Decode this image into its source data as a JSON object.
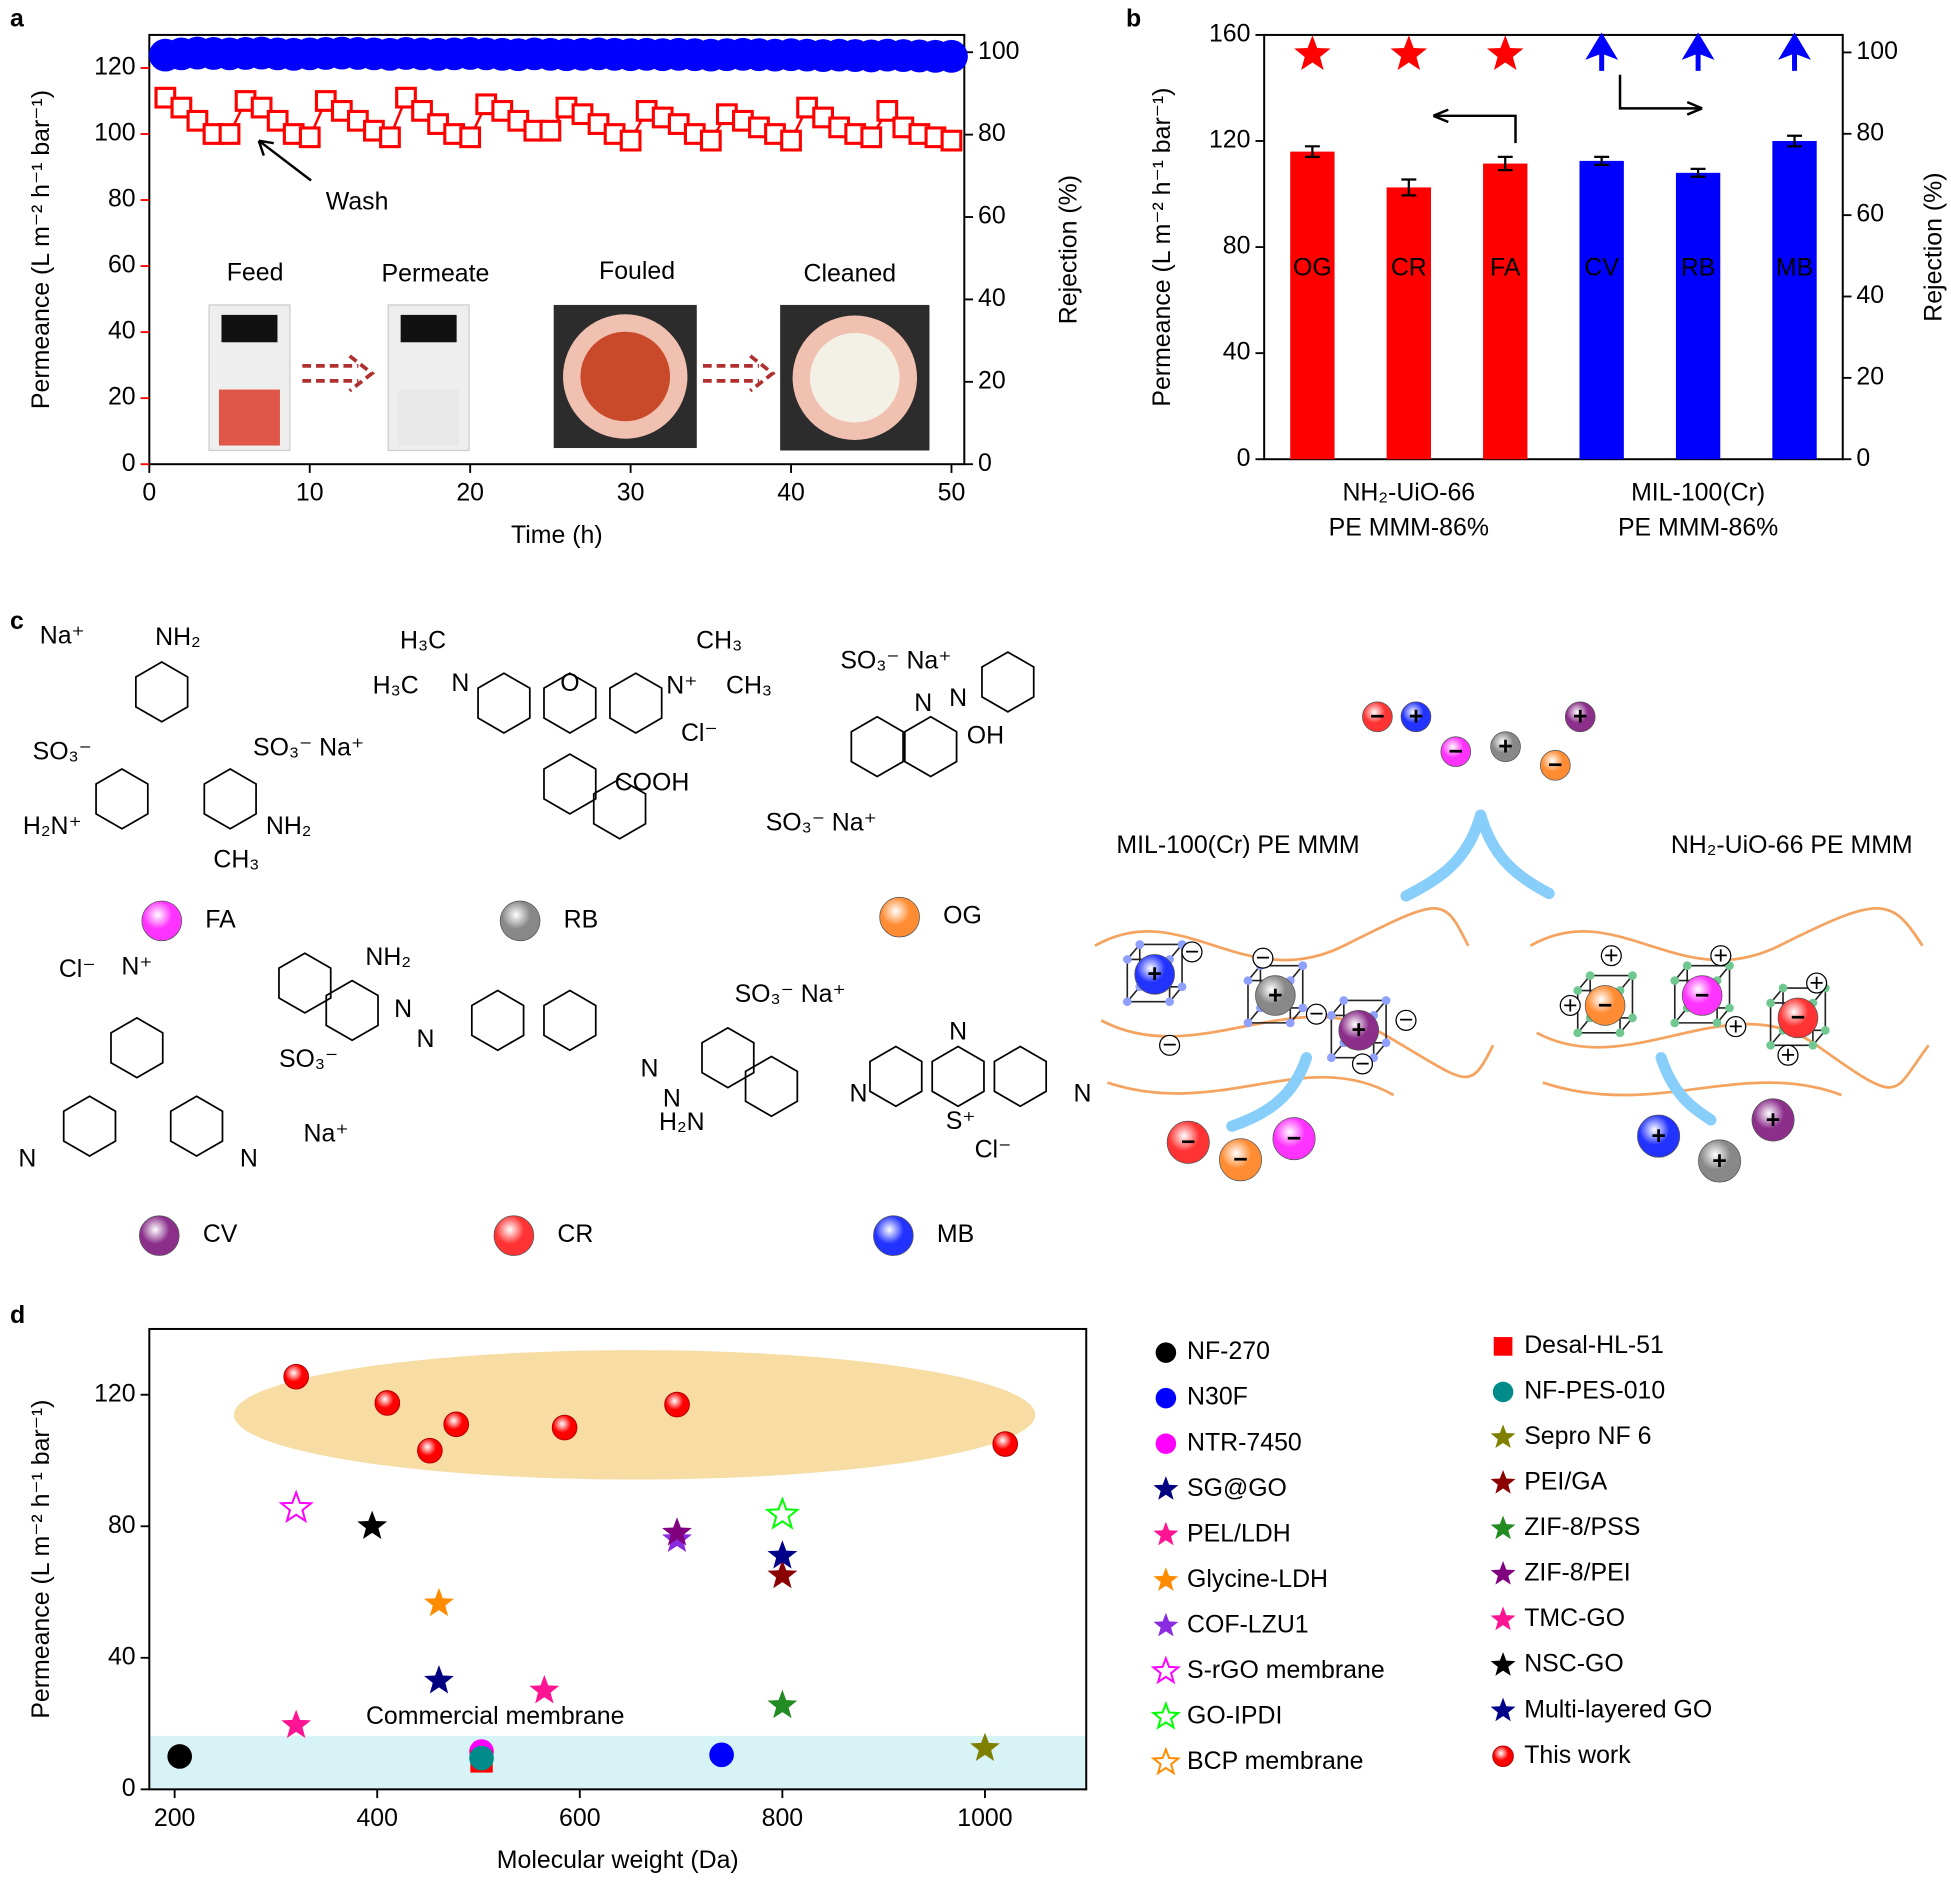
{
  "panel_labels": [
    "a",
    "b",
    "c",
    "d"
  ],
  "chart_data": [
    {
      "type": "line",
      "x": [
        1,
        2,
        3,
        4,
        5,
        6,
        7,
        8,
        9,
        10,
        11,
        12,
        13,
        14,
        15,
        16,
        17,
        18,
        19,
        20,
        21,
        22,
        23,
        24,
        25,
        26,
        27,
        28,
        29,
        30,
        31,
        32,
        33,
        34,
        35,
        36,
        37,
        38,
        39,
        40,
        41,
        42,
        43,
        44,
        45,
        46,
        47,
        48,
        49,
        50
      ],
      "xlim": [
        0,
        50.8
      ],
      "xticks": [
        0,
        10,
        20,
        30,
        40,
        50
      ],
      "ylim": [
        0,
        130
      ],
      "yticks": [
        0,
        20,
        40,
        60,
        80,
        100,
        120
      ],
      "y2lim": [
        0,
        104.2
      ],
      "y2ticks": [
        0,
        20,
        40,
        60,
        80,
        100
      ],
      "xlabel": "Time (h)",
      "ylabel": "Permeance (L m⁻² h⁻¹ bar⁻¹)",
      "y2label": "Rejection (%)",
      "y_axis_color": "#ff0000",
      "series": [
        {
          "color": "#0000ff",
          "marker": "circle",
          "axis": "y2",
          "values": [
            99.3,
            99.6,
            99.8,
            99.7,
            99.6,
            99.7,
            99.8,
            99.6,
            99.5,
            99.6,
            99.7,
            99.8,
            99.7,
            99.6,
            99.5,
            99.7,
            99.6,
            99.5,
            99.6,
            99.7,
            99.6,
            99.5,
            99.4,
            99.6,
            99.5,
            99.4,
            99.5,
            99.6,
            99.5,
            99.4,
            99.5,
            99.4,
            99.5,
            99.4,
            99.3,
            99.4,
            99.5,
            99.4,
            99.3,
            99.4,
            99.3,
            99.2,
            99.3,
            99.2,
            99.1,
            99.3,
            99.2,
            99.1,
            99.0,
            99.0
          ]
        },
        {
          "color": "#ff0000",
          "marker": "open-square",
          "line": true,
          "values": [
            111,
            108,
            104,
            100,
            100,
            110,
            108,
            104,
            100,
            99,
            110,
            107,
            104,
            101,
            99,
            111,
            107,
            103,
            100,
            99,
            109,
            107,
            104,
            101,
            101,
            108,
            106,
            103,
            100,
            98,
            107,
            105,
            103,
            100,
            98,
            106,
            104,
            102,
            100,
            98,
            108,
            105,
            102,
            100,
            99,
            107,
            102,
            100,
            99,
            98
          ]
        }
      ],
      "annotations": [
        "Wash",
        "Feed",
        "Permeate",
        "Fouled",
        "Cleaned"
      ]
    },
    {
      "type": "bar",
      "categories": [
        "OG",
        "CR",
        "FA",
        "CV",
        "RB",
        "MB"
      ],
      "ylim": [
        0,
        160
      ],
      "yticks": [
        0,
        40,
        80,
        120,
        160
      ],
      "y2lim": [
        0,
        104.3
      ],
      "y2ticks": [
        0,
        20,
        40,
        60,
        80,
        100
      ],
      "ylabel": "Permeance (L m⁻² h⁻¹ bar⁻¹)",
      "y2label": "Rejection (%)",
      "series": [
        {
          "values": [
            116,
            102.5,
            111.5,
            112.5,
            108,
            120
          ],
          "errors": [
            2,
            3,
            2.5,
            1.5,
            1.5,
            2
          ],
          "colors": [
            "#ff0000",
            "#ff0000",
            "#ff0000",
            "#0000ff",
            "#0000ff",
            "#0000ff"
          ]
        },
        {
          "axis": "y2",
          "values": [
            99.5,
            99.5,
            99.5,
            99.5,
            99.5,
            99.5
          ],
          "colors": [
            "#ff0000",
            "#ff0000",
            "#ff0000",
            "#0000ff",
            "#0000ff",
            "#0000ff"
          ],
          "markers": [
            "star",
            "star",
            "star",
            "triangle",
            "triangle",
            "triangle"
          ]
        }
      ],
      "group_labels": [
        [
          "NH₂-UiO-66",
          "PE MMM-86%"
        ],
        [
          "MIL-100(Cr)",
          "PE MMM-86%"
        ]
      ]
    },
    {
      "type": "scatter",
      "xlim": [
        175,
        1100
      ],
      "xticks": [
        200,
        400,
        600,
        800,
        1000
      ],
      "ylim": [
        0,
        140
      ],
      "yticks": [
        0,
        40,
        80,
        120
      ],
      "xlabel": "Molecular weight (Da)",
      "ylabel": "Permeance (L m⁻² h⁻¹ bar⁻¹)",
      "annotations": [
        "Commercial membrane"
      ],
      "series": [
        {
          "name": "NF-270",
          "color": "#000000",
          "marker": "circle",
          "x": [
            205
          ],
          "values": [
            10
          ]
        },
        {
          "name": "N30F",
          "color": "#0000ff",
          "marker": "circle",
          "x": [
            740
          ],
          "values": [
            10.5
          ]
        },
        {
          "name": "NTR-7450",
          "color": "#ff00ff",
          "marker": "circle",
          "x": [
            503
          ],
          "values": [
            11.5
          ]
        },
        {
          "name": "SG@GO",
          "color": "#000080",
          "marker": "star",
          "x": [
            461
          ],
          "values": [
            33
          ]
        },
        {
          "name": "PEL/LDH",
          "color": "#ff1493",
          "marker": "star",
          "x": [
            565
          ],
          "values": [
            30
          ]
        },
        {
          "name": "Glycine-LDH",
          "color": "#ff8c00",
          "marker": "star",
          "x": [
            461
          ],
          "values": [
            56.5
          ]
        },
        {
          "name": "COF-LZU1",
          "color": "#8a2be2",
          "marker": "star",
          "x": [
            696
          ],
          "values": [
            76
          ]
        },
        {
          "name": "S-rGO membrane",
          "color": "#ff00ff",
          "marker": "open-star",
          "x": [
            320
          ],
          "values": [
            85.5
          ]
        },
        {
          "name": "GO-IPDI",
          "color": "#00ff00",
          "marker": "open-star",
          "x": [
            800
          ],
          "values": [
            83.5
          ]
        },
        {
          "name": "BCP membrane",
          "color": "#ff8c00",
          "marker": "open-star",
          "x": [],
          "values": []
        },
        {
          "name": "Desal-HL-51",
          "color": "#ff0000",
          "marker": "square",
          "x": [
            503
          ],
          "values": [
            8.5
          ]
        },
        {
          "name": "NF-PES-010",
          "color": "#008b8b",
          "marker": "circle",
          "x": [
            503
          ],
          "values": [
            9.5
          ]
        },
        {
          "name": "Sepro NF 6",
          "color": "#808000",
          "marker": "star",
          "x": [
            1000
          ],
          "values": [
            12.5
          ]
        },
        {
          "name": "PEI/GA",
          "color": "#8b0000",
          "marker": "star",
          "x": [
            800
          ],
          "values": [
            65
          ]
        },
        {
          "name": "ZIF-8/PSS",
          "color": "#228b22",
          "marker": "star",
          "x": [
            800
          ],
          "values": [
            25.5
          ]
        },
        {
          "name": "ZIF-8/PEI",
          "color": "#800080",
          "marker": "star",
          "x": [
            696
          ],
          "values": [
            78
          ]
        },
        {
          "name": "TMC-GO",
          "color": "#ff1493",
          "marker": "star",
          "x": [
            320
          ],
          "values": [
            19.5
          ]
        },
        {
          "name": "NSC-GO",
          "color": "#000000",
          "marker": "star",
          "x": [
            395
          ],
          "values": [
            80
          ]
        },
        {
          "name": "Multi-layered GO",
          "color": "#00008b",
          "marker": "star",
          "x": [
            800
          ],
          "values": [
            71
          ]
        },
        {
          "name": "This work",
          "color": "#ff0000",
          "marker": "sphere",
          "x": [
            320,
            410,
            452,
            478,
            585,
            696,
            1020
          ],
          "values": [
            125.5,
            117.5,
            103,
            111,
            110,
            117,
            105
          ]
        }
      ]
    }
  ],
  "panel_c": {
    "dyes": [
      {
        "label": "FA",
        "color": "#ff33ff"
      },
      {
        "label": "RB",
        "color": "#888888"
      },
      {
        "label": "OG",
        "color": "#ff8c33"
      },
      {
        "label": "CV",
        "color": "#8b2f8b"
      },
      {
        "label": "CR",
        "color": "#ff3333"
      },
      {
        "label": "MB",
        "color": "#2233ff"
      }
    ],
    "membranes": [
      "MIL-100(Cr) PE MMM",
      "NH₂-UiO-66 PE MMM"
    ],
    "charges": {
      "positive": "+",
      "negative": "−"
    },
    "structure_labels": [
      "Na⁺",
      "NH₂",
      "SO₃⁻",
      "SO₃⁻ Na⁺",
      "H₂N⁺",
      "CH₃",
      "NH₂",
      "H₃C",
      "CH₃",
      "H₃C",
      "N",
      "O",
      "N⁺",
      "CH₃",
      "Cl⁻",
      "COOH",
      "SO₃⁻ Na⁺",
      "N",
      "N",
      "OH",
      "SO₃⁻ Na⁺",
      "Cl⁻",
      "N⁺",
      "N",
      "N",
      "NH₂",
      "N",
      "N",
      "SO₃⁻",
      "Na⁺",
      "N",
      "N",
      "SO₃⁻ Na⁺",
      "H₂N",
      "N",
      "S⁺",
      "Cl⁻",
      "N",
      "N"
    ]
  }
}
